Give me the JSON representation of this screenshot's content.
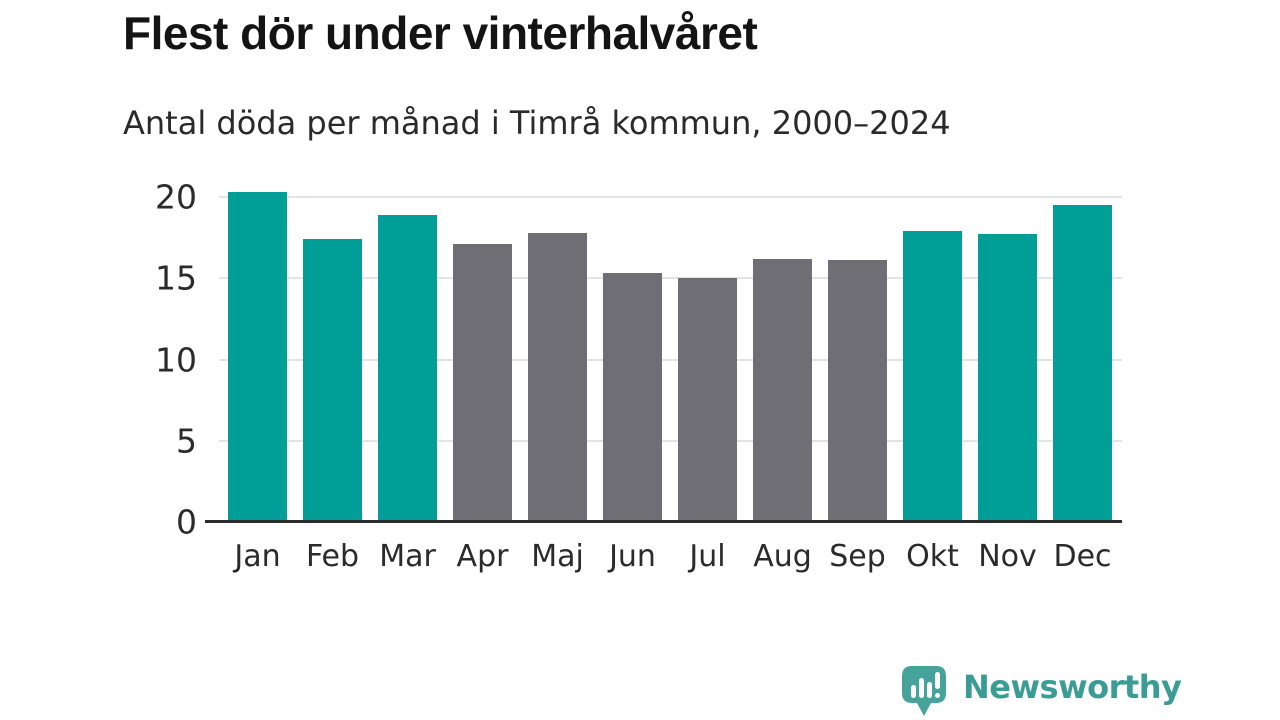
{
  "header": {
    "title": "Flest dör under vinterhalvåret",
    "subtitle": "Antal döda per månad i Timrå kommun, 2000–2024"
  },
  "chart_data": {
    "type": "bar",
    "title": "Flest dör under vinterhalvåret",
    "subtitle": "Antal döda per månad i Timrå kommun, 2000–2024",
    "categories": [
      "Jan",
      "Feb",
      "Mar",
      "Apr",
      "Maj",
      "Jun",
      "Jul",
      "Aug",
      "Sep",
      "Okt",
      "Nov",
      "Dec"
    ],
    "values": [
      20.3,
      17.4,
      18.9,
      17.1,
      17.8,
      15.3,
      15.0,
      16.2,
      16.1,
      17.9,
      17.7,
      19.5
    ],
    "bar_colors": [
      "#009e96",
      "#009e96",
      "#009e96",
      "#6f6e74",
      "#6f6e74",
      "#6f6e74",
      "#6f6e74",
      "#6f6e74",
      "#6f6e74",
      "#009e96",
      "#009e96",
      "#009e96"
    ],
    "highlight_color": "#009e96",
    "base_color": "#6f6e74",
    "xlabel": "",
    "ylabel": "",
    "yticks": [
      0,
      5,
      10,
      15,
      20
    ],
    "ylim": [
      0,
      20.43
    ],
    "grid": "horizontal",
    "legend": "none"
  },
  "colors": {
    "axis_line": "#2d2d2d",
    "gridline": "#e4e4e4",
    "text": "#2b2b2b",
    "logo_teal": "#3b9c96",
    "logo_icon_teal": "#46a39c"
  },
  "logo": {
    "text": "Newsworthy",
    "icon": "newsworthy-chart-bubble-icon"
  }
}
